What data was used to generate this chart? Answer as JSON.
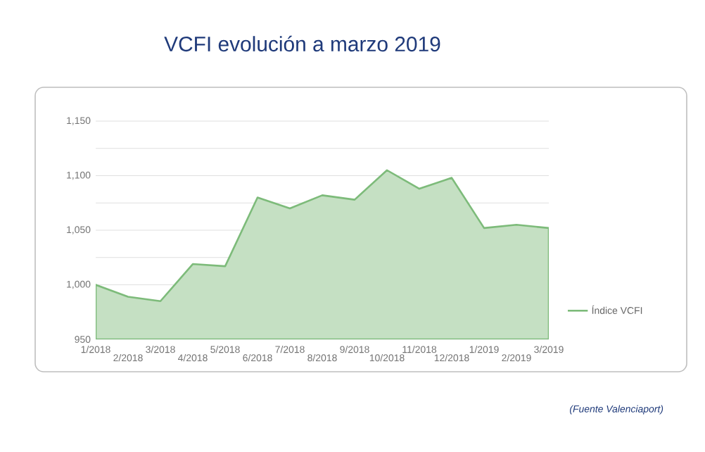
{
  "chart_data": {
    "type": "area",
    "title": "VCFI evolución a marzo 2019",
    "categories": [
      "1/2018",
      "2/2018",
      "3/2018",
      "4/2018",
      "5/2018",
      "6/2018",
      "7/2018",
      "8/2018",
      "9/2018",
      "10/2018",
      "11/2018",
      "12/2018",
      "1/2019",
      "2/2019",
      "3/2019"
    ],
    "series": [
      {
        "name": "Índice VCFI",
        "color": "#7dbb7a",
        "values": [
          1000,
          989,
          985,
          1019,
          1017,
          1080,
          1070,
          1082,
          1078,
          1105,
          1088,
          1098,
          1052,
          1055,
          1052
        ]
      }
    ],
    "ylim": [
      950,
      1150
    ],
    "yticks": [
      {
        "value": 950,
        "label": "950"
      },
      {
        "value": 975,
        "label": null
      },
      {
        "value": 1000,
        "label": "1,000"
      },
      {
        "value": 1025,
        "label": null
      },
      {
        "value": 1050,
        "label": "1,050"
      },
      {
        "value": 1075,
        "label": null
      },
      {
        "value": 1100,
        "label": "1,100"
      },
      {
        "value": 1125,
        "label": null
      },
      {
        "value": 1150,
        "label": "1,150"
      }
    ],
    "grid": "y",
    "legend": "right",
    "annotations": [
      "(Fuente  Valenciaport)"
    ]
  }
}
